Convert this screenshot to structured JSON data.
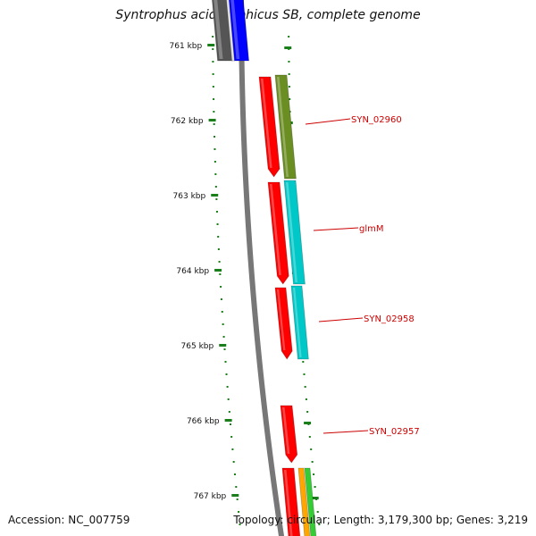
{
  "title": "Syntrophus aciditrophicus SB, complete genome",
  "footer": {
    "accession": "Accession: NC_007759",
    "summary": "Topology: circular; Length: 3,179,300 bp; Genes: 3,219"
  },
  "scale": {
    "unit": "kbp",
    "ticks": [
      {
        "kbp": 761,
        "label": "761 kbp"
      },
      {
        "kbp": 762,
        "label": "762 kbp"
      },
      {
        "kbp": 763,
        "label": "763 kbp"
      },
      {
        "kbp": 764,
        "label": "764 kbp"
      },
      {
        "kbp": 765,
        "label": "765 kbp"
      },
      {
        "kbp": 766,
        "label": "766 kbp"
      },
      {
        "kbp": 767,
        "label": "767 kbp"
      }
    ]
  },
  "genes": [
    {
      "name": "SYN_02960",
      "track": "outer",
      "start_kbp": 761.6,
      "end_kbp": 762.8,
      "color": "#6b8e23",
      "labeled": true
    },
    {
      "name": "glmM",
      "track": "outer",
      "start_kbp": 762.8,
      "end_kbp": 764.2,
      "color": "#00c8c8",
      "labeled": true
    },
    {
      "name": "SYN_02958",
      "track": "outer",
      "start_kbp": 764.2,
      "end_kbp": 765.2,
      "color": "#00c8c8",
      "labeled": true
    },
    {
      "name": "SYN_02957",
      "track": "inner",
      "start_kbp": 765.8,
      "end_kbp": 766.6,
      "color": "#ff0000",
      "labeled": true
    }
  ],
  "colors": {
    "cds": "#ff0000",
    "backbone": "#777777",
    "tick": "#1a7f1a",
    "label_line": "#cc0000",
    "label_text": "#cc0000",
    "blue": "#0000ff",
    "gray": "#555555",
    "olive": "#6b8e23",
    "cyan": "#00c8c8",
    "orange": "#ffa500",
    "green": "#33cc33"
  }
}
